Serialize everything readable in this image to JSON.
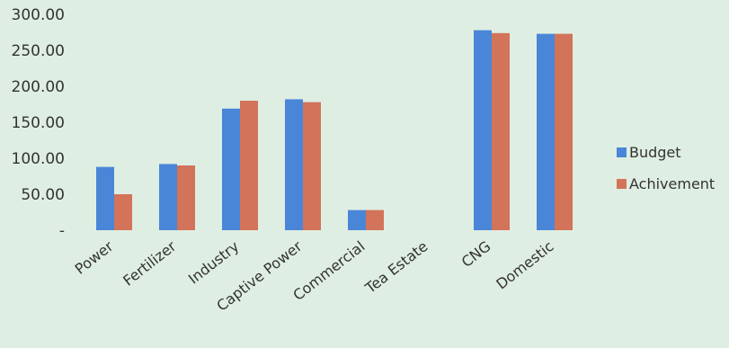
{
  "chart_data": {
    "type": "bar",
    "categories": [
      "Power",
      "Fertilizer",
      "Industry",
      "Captive Power",
      "Commercial",
      "Tea Estate",
      "CNG",
      "Domestic"
    ],
    "series": [
      {
        "name": "Budget",
        "color": "#4a86d8",
        "values": [
          88,
          92,
          169,
          182,
          28,
          0,
          278,
          273
        ]
      },
      {
        "name": "Achivement",
        "color": "#d2735a",
        "values": [
          50,
          90,
          180,
          178,
          28,
          0,
          274,
          273
        ]
      }
    ],
    "yticks": [
      {
        "value": 0,
        "label": "-"
      },
      {
        "value": 50,
        "label": "50.00"
      },
      {
        "value": 100,
        "label": "100.00"
      },
      {
        "value": 150,
        "label": "150.00"
      },
      {
        "value": 200,
        "label": "200.00"
      },
      {
        "value": 250,
        "label": "250.00"
      },
      {
        "value": 300,
        "label": "300.00"
      }
    ],
    "ylim": [
      0,
      300
    ],
    "grid": false,
    "legend_position": "right"
  }
}
